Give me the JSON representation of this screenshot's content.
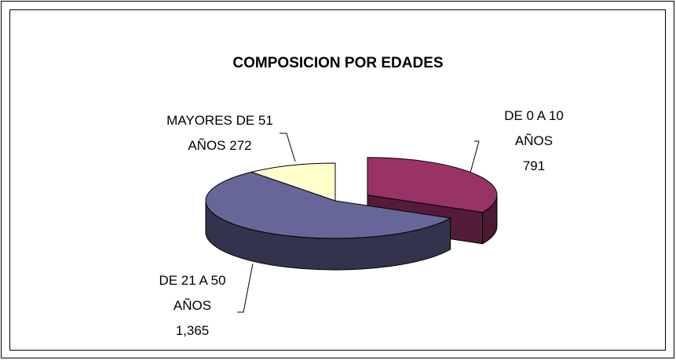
{
  "chart_data": {
    "type": "pie3d",
    "title": "COMPOSICION POR EDADES",
    "categories": [
      "DE 0 A 10 AÑOS",
      "DE 21 A 50 AÑOS",
      "MAYORES DE 51 AÑOS"
    ],
    "values": [
      791,
      1365,
      272
    ],
    "value_labels": [
      "791",
      "1,365",
      "272"
    ],
    "colors": [
      "#993366",
      "#666699",
      "#ffffcc"
    ]
  }
}
